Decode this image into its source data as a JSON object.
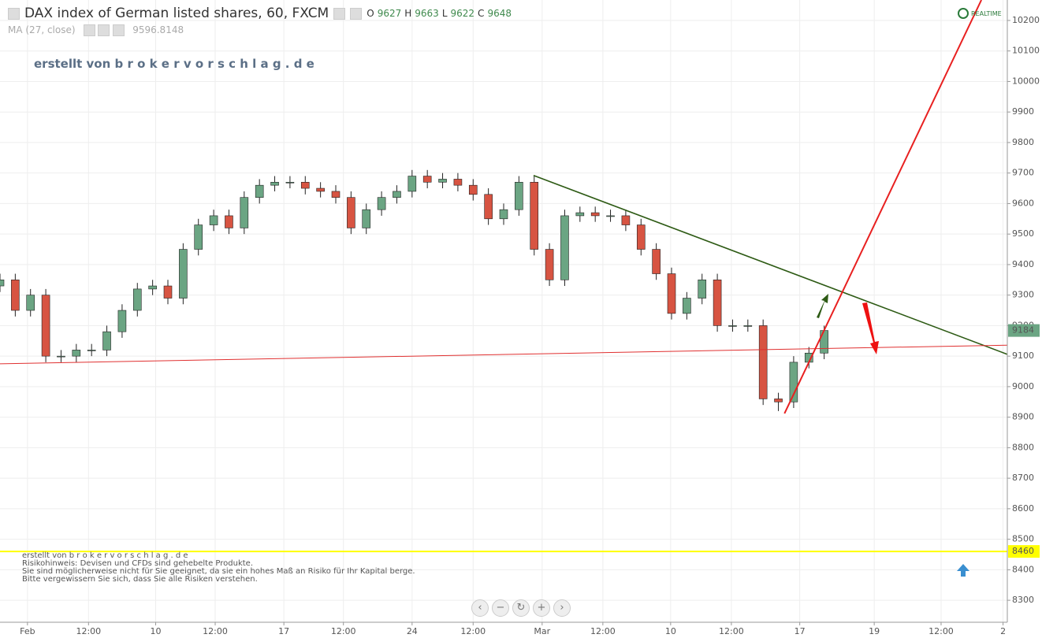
{
  "chart_data": {
    "type": "candlestick",
    "title": "DAX index of German listed shares, 60, FXCM",
    "header_fields": [
      {
        "label": "O",
        "value": 9627
      },
      {
        "label": "H",
        "value": 9663
      },
      {
        "label": "L",
        "value": 9622
      },
      {
        "label": "C",
        "value": 9648
      }
    ],
    "indicator": {
      "label": "MA (27, close)",
      "value": 9596.8148
    },
    "watermark": "erstellt von b r o k e r v o r s c h l a g . d e",
    "disclaimer": [
      "erstellt von b r o k e r v o r s c h l a g . d e",
      "Risikohinweis: Devisen und CFDs sind gehebelte Produkte.",
      "Sie sind möglicherweise nicht für Sie geeignet, da sie ein hohes Maß an Risiko für Ihr Kapital berge.",
      "Bitte vergewissern Sie sich, dass Sie alle Risiken verstehen."
    ],
    "realtime_label": "REALTIME",
    "up_color": "#6ba583",
    "down_color": "#d75442",
    "x": [
      0,
      5,
      10,
      15,
      20,
      25,
      30,
      35,
      40,
      45,
      50,
      55,
      60,
      65,
      70,
      75,
      80,
      85,
      90,
      95,
      100,
      105,
      110,
      115,
      120,
      125,
      130,
      135,
      140,
      145,
      150,
      155,
      160,
      165,
      170,
      175,
      180,
      185,
      190,
      195,
      200,
      205,
      210,
      215,
      220,
      225,
      230,
      235,
      240,
      245,
      250,
      255,
      260,
      265,
      270
    ],
    "open": [
      9330,
      9350,
      9250,
      9300,
      9100,
      9100,
      9120,
      9120,
      9180,
      9250,
      9320,
      9330,
      9290,
      9450,
      9530,
      9560,
      9520,
      9620,
      9660,
      9670,
      9670,
      9650,
      9640,
      9620,
      9520,
      9580,
      9620,
      9640,
      9690,
      9670,
      9680,
      9660,
      9630,
      9550,
      9580,
      9670,
      9450,
      9350,
      9560,
      9570,
      9560,
      9560,
      9530,
      9450,
      9370,
      9240,
      9290,
      9350,
      9200,
      9200,
      9200,
      8960,
      8950,
      9080,
      9110
    ],
    "high": [
      9370,
      9370,
      9320,
      9320,
      9120,
      9140,
      9140,
      9200,
      9270,
      9340,
      9350,
      9350,
      9470,
      9550,
      9580,
      9580,
      9640,
      9680,
      9690,
      9690,
      9690,
      9670,
      9660,
      9640,
      9600,
      9640,
      9660,
      9710,
      9710,
      9700,
      9700,
      9680,
      9650,
      9600,
      9690,
      9690,
      9470,
      9580,
      9590,
      9590,
      9580,
      9580,
      9550,
      9470,
      9390,
      9310,
      9370,
      9370,
      9220,
      9220,
      9220,
      8980,
      9100,
      9130,
      9200
    ],
    "low": [
      9310,
      9230,
      9230,
      9080,
      9080,
      9080,
      9100,
      9100,
      9160,
      9230,
      9300,
      9270,
      9270,
      9430,
      9510,
      9500,
      9500,
      9600,
      9640,
      9650,
      9630,
      9620,
      9600,
      9500,
      9500,
      9560,
      9600,
      9620,
      9650,
      9650,
      9640,
      9610,
      9530,
      9530,
      9560,
      9430,
      9330,
      9330,
      9540,
      9540,
      9540,
      9510,
      9430,
      9350,
      9220,
      9220,
      9270,
      9180,
      9180,
      9180,
      8940,
      8920,
      8930,
      9060,
      9090
    ],
    "close": [
      9350,
      9250,
      9300,
      9100,
      9100,
      9120,
      9120,
      9180,
      9250,
      9320,
      9330,
      9290,
      9450,
      9530,
      9560,
      9520,
      9620,
      9660,
      9670,
      9670,
      9650,
      9640,
      9620,
      9520,
      9580,
      9620,
      9640,
      9690,
      9670,
      9680,
      9660,
      9630,
      9550,
      9580,
      9670,
      9450,
      9350,
      9560,
      9570,
      9560,
      9560,
      9530,
      9450,
      9370,
      9240,
      9290,
      9350,
      9200,
      9200,
      9200,
      8960,
      8950,
      9080,
      9110,
      9184
    ],
    "xlim": [
      0,
      330
    ],
    "xticks": [
      {
        "value": 9,
        "label": "Feb"
      },
      {
        "value": 29,
        "label": "12:00"
      },
      {
        "value": 51,
        "label": "10"
      },
      {
        "value": 70.5,
        "label": "12:00"
      },
      {
        "value": 93,
        "label": "17"
      },
      {
        "value": 112.5,
        "label": "12:00"
      },
      {
        "value": 135,
        "label": "24"
      },
      {
        "value": 155,
        "label": "12:00"
      },
      {
        "value": 177.6,
        "label": "Mar"
      },
      {
        "value": 197.5,
        "label": "12:00"
      },
      {
        "value": 219.7,
        "label": "10"
      },
      {
        "value": 239.6,
        "label": "12:00"
      },
      {
        "value": 262,
        "label": "17"
      },
      {
        "value": 286.4,
        "label": "19"
      },
      {
        "value": 308.3,
        "label": "12:00"
      },
      {
        "value": 328.6,
        "label": "2"
      }
    ],
    "ylim": [
      8228,
      10267
    ],
    "yticks": [
      8300,
      8400,
      8500,
      8600,
      8700,
      8800,
      8900,
      9000,
      9100,
      9200,
      9300,
      9400,
      9500,
      9600,
      9700,
      9800,
      9900,
      10000,
      10100,
      10200
    ],
    "grid": true,
    "last_price": {
      "value": 9184,
      "color": "#6ba583"
    },
    "hline": {
      "value": 8460,
      "color": "#ffff00"
    },
    "trendlines": [
      {
        "x": [
          174.8,
          330
        ],
        "y": [
          9692,
          9106
        ],
        "color": "#2d5a14"
      },
      {
        "x": [
          0,
          330
        ],
        "y": [
          9075,
          9136
        ],
        "color": "#e03030"
      },
      {
        "x": [
          257,
          321.5
        ],
        "y": [
          8912,
          10267
        ],
        "color": "#e82020"
      }
    ]
  }
}
